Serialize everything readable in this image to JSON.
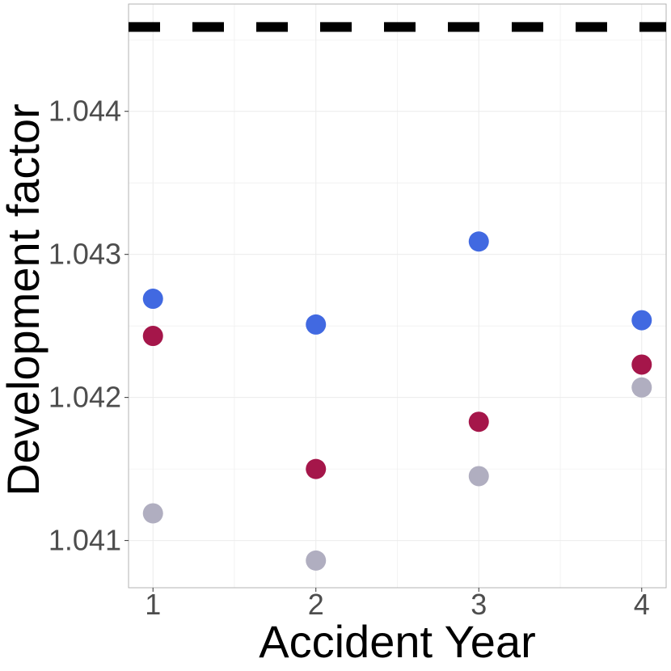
{
  "chart_data": {
    "type": "scatter",
    "xlabel": "Accident Year",
    "ylabel": "Development factor",
    "xlim": [
      0.85,
      4.15
    ],
    "ylim": [
      1.04067,
      1.04475
    ],
    "x_ticks": [
      1,
      2,
      3,
      4
    ],
    "y_ticks": [
      1.041,
      1.042,
      1.043,
      1.044
    ],
    "grid": true,
    "series": [
      {
        "color": "#4169e1",
        "points": [
          [
            1,
            1.04269
          ],
          [
            2,
            1.04251
          ],
          [
            3,
            1.04309
          ],
          [
            4,
            1.04254
          ]
        ]
      },
      {
        "color": "#a5164a",
        "points": [
          [
            1,
            1.04243
          ],
          [
            2,
            1.0415
          ],
          [
            3,
            1.04183
          ],
          [
            4,
            1.04223
          ]
        ]
      },
      {
        "color": "#b0aec0",
        "points": [
          [
            1,
            1.04119
          ],
          [
            2,
            1.04086
          ],
          [
            3,
            1.04145
          ],
          [
            4,
            1.04207
          ]
        ]
      }
    ],
    "reference_line": {
      "y": 1.04459,
      "style": "dashed",
      "color": "#000000"
    }
  }
}
